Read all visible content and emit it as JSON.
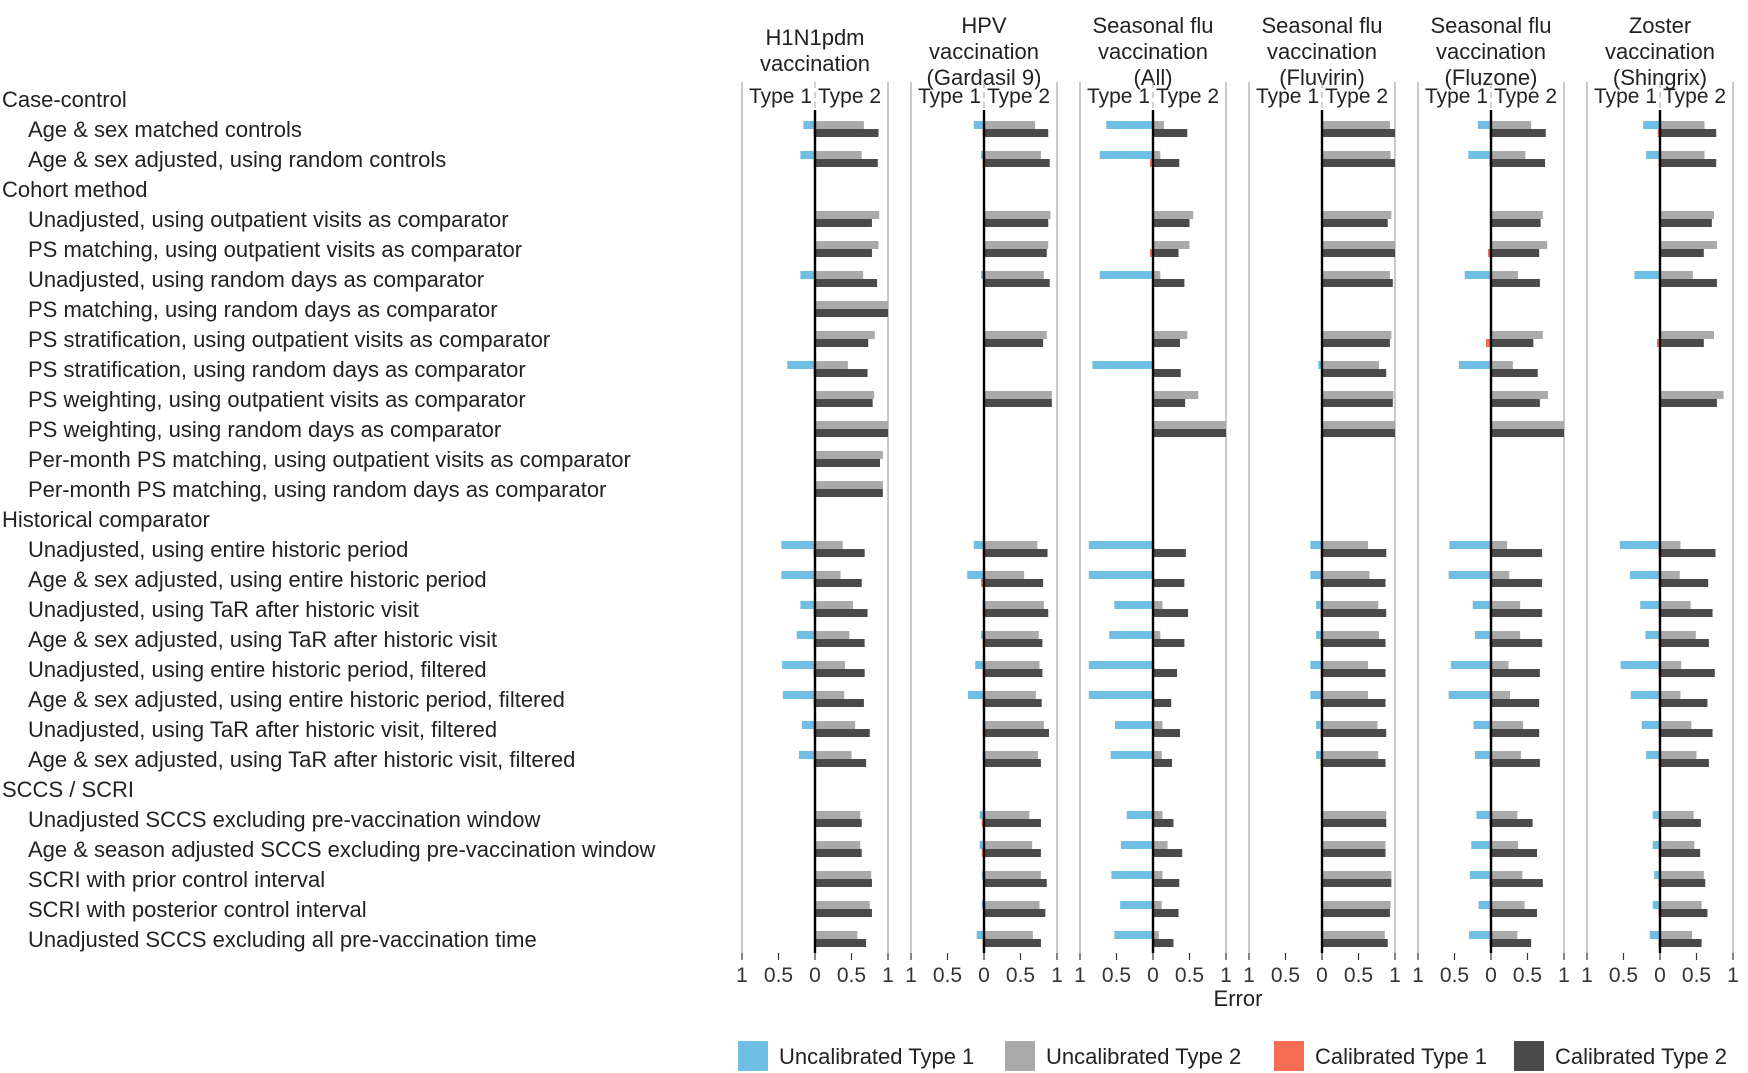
{
  "chart_data": {
    "type": "bar",
    "xlabel": "Error",
    "xlim": [
      -1,
      1
    ],
    "x_tick_labels": [
      "1",
      "0.5",
      "0",
      "0.5",
      "1"
    ],
    "type_labels": [
      "Type 1",
      "Type 2"
    ],
    "panels": [
      {
        "title": [
          "H1N1pdm",
          "vaccination"
        ]
      },
      {
        "title": [
          "HPV",
          "vaccination",
          "(Gardasil 9)"
        ]
      },
      {
        "title": [
          "Seasonal flu",
          "vaccination",
          "(All)"
        ]
      },
      {
        "title": [
          "Seasonal flu",
          "vaccination",
          "(Fluvirin)"
        ]
      },
      {
        "title": [
          "Seasonal flu",
          "vaccination",
          "(Fluzone)"
        ]
      },
      {
        "title": [
          "Zoster",
          "vaccination",
          "(Shingrix)"
        ]
      }
    ],
    "rows": [
      {
        "kind": "group",
        "label": "Case-control"
      },
      {
        "kind": "method",
        "label": "Age & sex matched controls"
      },
      {
        "kind": "method",
        "label": "Age & sex adjusted, using random controls"
      },
      {
        "kind": "group",
        "label": "Cohort method"
      },
      {
        "kind": "method",
        "label": "Unadjusted, using outpatient visits as comparator"
      },
      {
        "kind": "method",
        "label": "PS matching, using outpatient visits as comparator"
      },
      {
        "kind": "method",
        "label": "Unadjusted, using random days as comparator"
      },
      {
        "kind": "method",
        "label": "PS matching, using random days as comparator"
      },
      {
        "kind": "method",
        "label": "PS stratification, using outpatient visits as comparator"
      },
      {
        "kind": "method",
        "label": "PS stratification, using random days as comparator"
      },
      {
        "kind": "method",
        "label": "PS weighting, using outpatient visits as comparator"
      },
      {
        "kind": "method",
        "label": "PS weighting, using random days as comparator"
      },
      {
        "kind": "method",
        "label": "Per-month PS matching, using outpatient visits as comparator"
      },
      {
        "kind": "method",
        "label": "Per-month PS matching, using random days as comparator"
      },
      {
        "kind": "group",
        "label": "Historical comparator"
      },
      {
        "kind": "method",
        "label": "Unadjusted, using entire historic period"
      },
      {
        "kind": "method",
        "label": "Age & sex adjusted, using entire historic period"
      },
      {
        "kind": "method",
        "label": "Unadjusted, using TaR after historic visit"
      },
      {
        "kind": "method",
        "label": "Age & sex adjusted, using TaR after historic visit"
      },
      {
        "kind": "method",
        "label": "Unadjusted, using entire historic period, filtered"
      },
      {
        "kind": "method",
        "label": "Age & sex adjusted, using entire historic period, filtered"
      },
      {
        "kind": "method",
        "label": "Unadjusted, using TaR after historic visit, filtered"
      },
      {
        "kind": "method",
        "label": "Age & sex adjusted, using TaR after historic visit, filtered"
      },
      {
        "kind": "group",
        "label": "SCCS / SCRI"
      },
      {
        "kind": "method",
        "label": "Unadjusted SCCS excluding pre-vaccination window"
      },
      {
        "kind": "method",
        "label": "Age & season adjusted SCCS excluding pre-vaccination window"
      },
      {
        "kind": "method",
        "label": "SCRI with prior control interval"
      },
      {
        "kind": "method",
        "label": "SCRI with posterior control interval"
      },
      {
        "kind": "method",
        "label": "Unadjusted SCCS excluding all pre-vaccination time"
      }
    ],
    "series": [
      {
        "name": "Uncalibrated Type 1",
        "color": "#6fbee3"
      },
      {
        "name": "Uncalibrated Type 2",
        "color": "#aaaaaa"
      },
      {
        "name": "Calibrated Type 1",
        "color": "#f46d54"
      },
      {
        "name": "Calibrated Type 2",
        "color": "#4a4a4a"
      }
    ],
    "note": "values per panel per method row: [uncal_t1, uncal_t2, cal_t1, cal_t2]; null = not estimated",
    "values": [
      [
        [
          0.16,
          0.67,
          0.02,
          0.87
        ],
        [
          0.2,
          0.64,
          0.02,
          0.86
        ],
        [
          0.01,
          0.88,
          0.01,
          0.78
        ],
        [
          0.01,
          0.87,
          0.01,
          0.78
        ],
        [
          0.2,
          0.66,
          0.01,
          0.85
        ],
        [
          0,
          1.0,
          0,
          1.0
        ],
        [
          0.01,
          0.82,
          0.01,
          0.73
        ],
        [
          0.38,
          0.45,
          0.02,
          0.72
        ],
        [
          0.01,
          0.81,
          0.01,
          0.79
        ],
        [
          0,
          1.0,
          0,
          1.0
        ],
        [
          0,
          0.93,
          0,
          0.89
        ],
        [
          0,
          0.93,
          0,
          0.93
        ],
        [
          0.46,
          0.38,
          0.02,
          0.68
        ],
        [
          0.46,
          0.35,
          0.02,
          0.64
        ],
        [
          0.2,
          0.52,
          0.02,
          0.72
        ],
        [
          0.25,
          0.47,
          0.02,
          0.68
        ],
        [
          0.45,
          0.41,
          0.02,
          0.68
        ],
        [
          0.44,
          0.4,
          0.02,
          0.67
        ],
        [
          0.18,
          0.55,
          0.02,
          0.75
        ],
        [
          0.22,
          0.5,
          0.02,
          0.7
        ],
        [
          0.01,
          0.62,
          0.01,
          0.64
        ],
        [
          0.01,
          0.62,
          0.01,
          0.64
        ],
        [
          0.01,
          0.77,
          0.01,
          0.78
        ],
        [
          0.01,
          0.75,
          0.01,
          0.78
        ],
        [
          0.01,
          0.58,
          0.01,
          0.7
        ]
      ],
      [
        [
          0.14,
          0.7,
          0.02,
          0.88
        ],
        [
          0.04,
          0.78,
          0.02,
          0.9
        ],
        [
          0.01,
          0.91,
          0.01,
          0.88
        ],
        [
          0.01,
          0.88,
          0.01,
          0.86
        ],
        [
          0.04,
          0.82,
          0.01,
          0.9
        ],
        null,
        [
          0.01,
          0.86,
          0.01,
          0.81
        ],
        null,
        [
          0.01,
          0.93,
          0.01,
          0.93
        ],
        null,
        null,
        null,
        [
          0.14,
          0.73,
          0.02,
          0.87
        ],
        [
          0.23,
          0.55,
          0.04,
          0.81
        ],
        [
          0.02,
          0.82,
          0.02,
          0.88
        ],
        [
          0.04,
          0.75,
          0.02,
          0.8
        ],
        [
          0.12,
          0.76,
          0.02,
          0.8
        ],
        [
          0.22,
          0.71,
          0.02,
          0.79
        ],
        [
          0.02,
          0.82,
          0.02,
          0.89
        ],
        [
          0.02,
          0.74,
          0.01,
          0.78
        ],
        [
          0.06,
          0.62,
          0.03,
          0.78
        ],
        [
          0.06,
          0.66,
          0.03,
          0.78
        ],
        [
          0.03,
          0.78,
          0.01,
          0.86
        ],
        [
          0.03,
          0.76,
          0.01,
          0.84
        ],
        [
          0.1,
          0.67,
          0.02,
          0.78
        ]
      ],
      [
        [
          0.64,
          0.15,
          0.01,
          0.47
        ],
        [
          0.73,
          0.1,
          0.04,
          0.36
        ],
        [
          0.01,
          0.55,
          0.01,
          0.5
        ],
        [
          0.01,
          0.5,
          0.04,
          0.35
        ],
        [
          0.73,
          0.1,
          0.01,
          0.43
        ],
        null,
        [
          0.01,
          0.47,
          0.01,
          0.37
        ],
        [
          0.83,
          0.02,
          0.01,
          0.38
        ],
        [
          0.01,
          0.62,
          0.01,
          0.44
        ],
        [
          0,
          1.0,
          0,
          1.0
        ],
        null,
        null,
        [
          0.88,
          0.02,
          0.01,
          0.45
        ],
        [
          0.88,
          0.02,
          0.01,
          0.43
        ],
        [
          0.53,
          0.13,
          0.01,
          0.48
        ],
        [
          0.6,
          0.1,
          0.01,
          0.43
        ],
        [
          0.88,
          0.02,
          0.01,
          0.33
        ],
        [
          0.88,
          0.02,
          0.01,
          0.25
        ],
        [
          0.52,
          0.13,
          0.01,
          0.37
        ],
        [
          0.58,
          0.12,
          0.01,
          0.26
        ],
        [
          0.36,
          0.13,
          0.01,
          0.28
        ],
        [
          0.44,
          0.2,
          0.01,
          0.4
        ],
        [
          0.57,
          0.13,
          0.01,
          0.36
        ],
        [
          0.45,
          0.12,
          0.01,
          0.35
        ],
        [
          0.53,
          0.08,
          0.01,
          0.28
        ]
      ],
      [
        [
          0.01,
          0.93,
          0.01,
          1.0
        ],
        [
          0.01,
          0.94,
          0.01,
          1.0
        ],
        [
          0.01,
          0.95,
          0.01,
          0.9
        ],
        [
          0.01,
          1.0,
          0.01,
          1.0
        ],
        [
          0.01,
          0.93,
          0.01,
          0.97
        ],
        null,
        [
          0.01,
          0.95,
          0.01,
          0.93
        ],
        [
          0.05,
          0.78,
          0.01,
          0.88
        ],
        [
          0.01,
          0.98,
          0.01,
          0.97
        ],
        [
          0,
          1.0,
          0,
          1.0
        ],
        null,
        null,
        [
          0.16,
          0.63,
          0.02,
          0.88
        ],
        [
          0.16,
          0.65,
          0.02,
          0.87
        ],
        [
          0.08,
          0.77,
          0.02,
          0.88
        ],
        [
          0.08,
          0.78,
          0.02,
          0.87
        ],
        [
          0.16,
          0.63,
          0.02,
          0.87
        ],
        [
          0.16,
          0.63,
          0.02,
          0.87
        ],
        [
          0.08,
          0.76,
          0.02,
          0.88
        ],
        [
          0.08,
          0.77,
          0.02,
          0.87
        ],
        [
          0.01,
          0.88,
          0.01,
          0.88
        ],
        [
          0.01,
          0.87,
          0.01,
          0.87
        ],
        [
          0.01,
          0.95,
          0.01,
          0.95
        ],
        [
          0.01,
          0.94,
          0.01,
          0.93
        ],
        [
          0.01,
          0.86,
          0.01,
          0.9
        ]
      ],
      [
        [
          0.18,
          0.55,
          0.02,
          0.75
        ],
        [
          0.31,
          0.47,
          0.02,
          0.74
        ],
        [
          0.01,
          0.71,
          0.01,
          0.68
        ],
        [
          0.01,
          0.77,
          0.04,
          0.66
        ],
        [
          0.36,
          0.37,
          0.01,
          0.67
        ],
        null,
        [
          0.01,
          0.71,
          0.07,
          0.58
        ],
        [
          0.44,
          0.3,
          0.01,
          0.64
        ],
        [
          0.01,
          0.78,
          0.01,
          0.67
        ],
        [
          0,
          1.0,
          0,
          1.0
        ],
        null,
        null,
        [
          0.57,
          0.22,
          0.01,
          0.7
        ],
        [
          0.58,
          0.25,
          0.01,
          0.7
        ],
        [
          0.25,
          0.4,
          0.02,
          0.7
        ],
        [
          0.22,
          0.4,
          0.02,
          0.7
        ],
        [
          0.55,
          0.24,
          0.01,
          0.67
        ],
        [
          0.58,
          0.26,
          0.01,
          0.66
        ],
        [
          0.24,
          0.44,
          0.02,
          0.66
        ],
        [
          0.22,
          0.41,
          0.02,
          0.67
        ],
        [
          0.2,
          0.36,
          0.02,
          0.57
        ],
        [
          0.27,
          0.37,
          0.02,
          0.63
        ],
        [
          0.29,
          0.43,
          0.02,
          0.71
        ],
        [
          0.17,
          0.46,
          0.02,
          0.63
        ],
        [
          0.3,
          0.36,
          0.02,
          0.55
        ]
      ],
      [
        [
          0.23,
          0.61,
          0.03,
          0.77
        ],
        [
          0.19,
          0.61,
          0.02,
          0.77
        ],
        [
          0.01,
          0.74,
          0.01,
          0.71
        ],
        [
          0.01,
          0.78,
          0.01,
          0.6
        ],
        [
          0.35,
          0.45,
          0.01,
          0.78
        ],
        null,
        [
          0.01,
          0.74,
          0.04,
          0.6
        ],
        null,
        [
          0.01,
          0.87,
          0.01,
          0.78
        ],
        null,
        null,
        null,
        [
          0.55,
          0.28,
          0.02,
          0.76
        ],
        [
          0.41,
          0.27,
          0.02,
          0.66
        ],
        [
          0.27,
          0.42,
          0.02,
          0.72
        ],
        [
          0.2,
          0.49,
          0.02,
          0.67
        ],
        [
          0.54,
          0.29,
          0.02,
          0.75
        ],
        [
          0.4,
          0.28,
          0.02,
          0.65
        ],
        [
          0.25,
          0.43,
          0.02,
          0.72
        ],
        [
          0.19,
          0.5,
          0.02,
          0.67
        ],
        [
          0.1,
          0.46,
          0.02,
          0.56
        ],
        [
          0.1,
          0.47,
          0.02,
          0.55
        ],
        [
          0.08,
          0.6,
          0.02,
          0.62
        ],
        [
          0.1,
          0.57,
          0.02,
          0.65
        ],
        [
          0.14,
          0.44,
          0.02,
          0.57
        ]
      ]
    ]
  }
}
